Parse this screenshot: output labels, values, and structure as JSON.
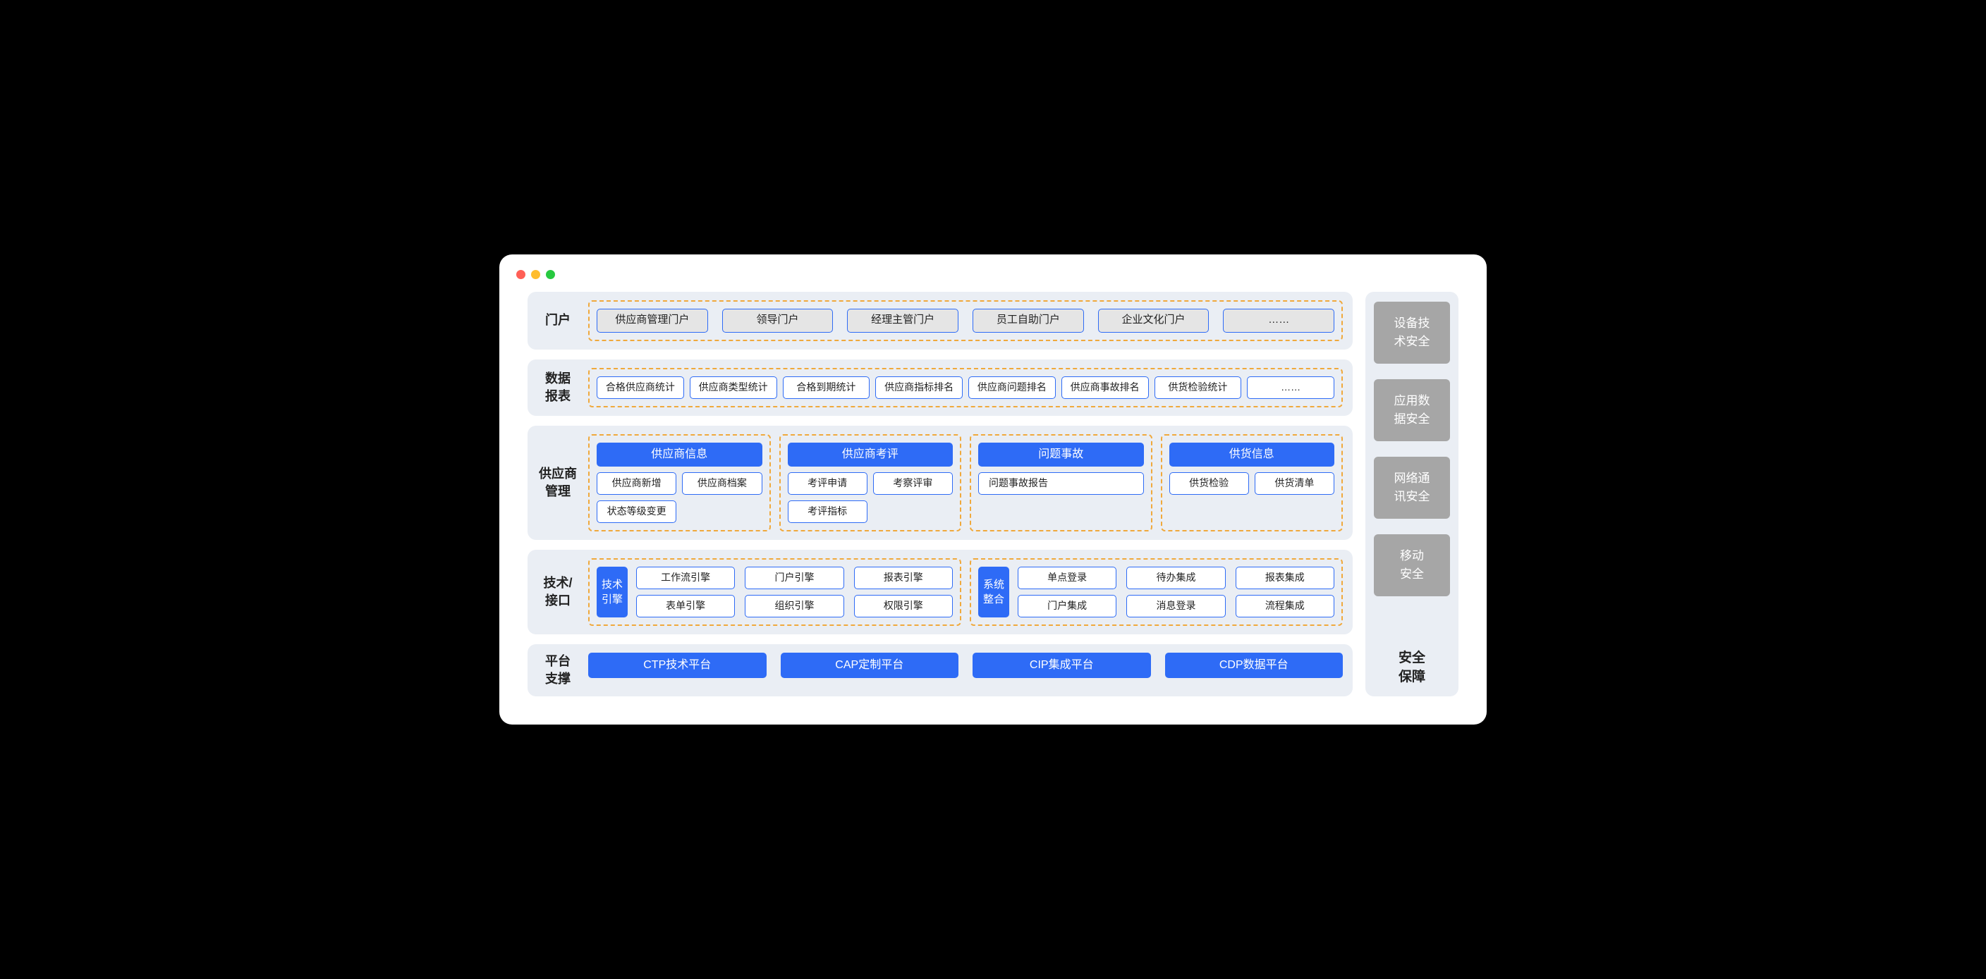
{
  "colors": {
    "window_bg": "#ffffff",
    "section_bg": "#eaeef4",
    "dashed_border": "#f0a93c",
    "blue": "#2e6bf6",
    "blue_border": "#2e6bf6",
    "gray_pill_bg": "#e5e5e5",
    "sec_card_bg": "#a6a6a6",
    "text_dark": "#222222",
    "traffic_red": "#ff5f56",
    "traffic_yellow": "#ffbd2e",
    "traffic_green": "#27c93f"
  },
  "fontsize": {
    "section_label": 18,
    "default": 15
  },
  "rows": {
    "portal": {
      "label": "门户",
      "items": [
        "供应商管理门户",
        "领导门户",
        "经理主管门户",
        "员工自助门户",
        "企业文化门户",
        "……"
      ]
    },
    "reports": {
      "label": "数据\n报表",
      "items": [
        "合格供应商统计",
        "供应商类型统计",
        "合格到期统计",
        "供应商指标排名",
        "供应商问题排名",
        "供应商事故排名",
        "供货检验统计",
        "……"
      ]
    },
    "supplier": {
      "label": "供应商\n管理",
      "modules": [
        {
          "head": "供应商信息",
          "items": [
            "供应商新增",
            "供应商档案",
            "状态等级变更"
          ]
        },
        {
          "head": "供应商考评",
          "items": [
            "考评申请",
            "考察评审",
            "考评指标"
          ]
        },
        {
          "head": "问题事故",
          "items_full": [
            "问题事故报告"
          ]
        },
        {
          "head": "供货信息",
          "items": [
            "供货检验",
            "供货清单"
          ]
        }
      ]
    },
    "tech": {
      "label": "技术/\n接口",
      "blocks": [
        {
          "sublabel": "技术\n引擎",
          "items": [
            "工作流引擎",
            "门户引擎",
            "报表引擎",
            "表单引擎",
            "组织引擎",
            "权限引擎"
          ]
        },
        {
          "sublabel": "系统\n整合",
          "items": [
            "单点登录",
            "待办集成",
            "报表集成",
            "门户集成",
            "消息登录",
            "流程集成"
          ]
        }
      ]
    },
    "platform": {
      "label": "平台\n支撑",
      "items": [
        "CTP技术平台",
        "CAP定制平台",
        "CIP集成平台",
        "CDP数据平台"
      ]
    }
  },
  "security": {
    "label": "安全\n保障",
    "cards": [
      "设备技\n术安全",
      "应用数\n据安全",
      "网络通\n讯安全",
      "移动\n安全"
    ]
  }
}
